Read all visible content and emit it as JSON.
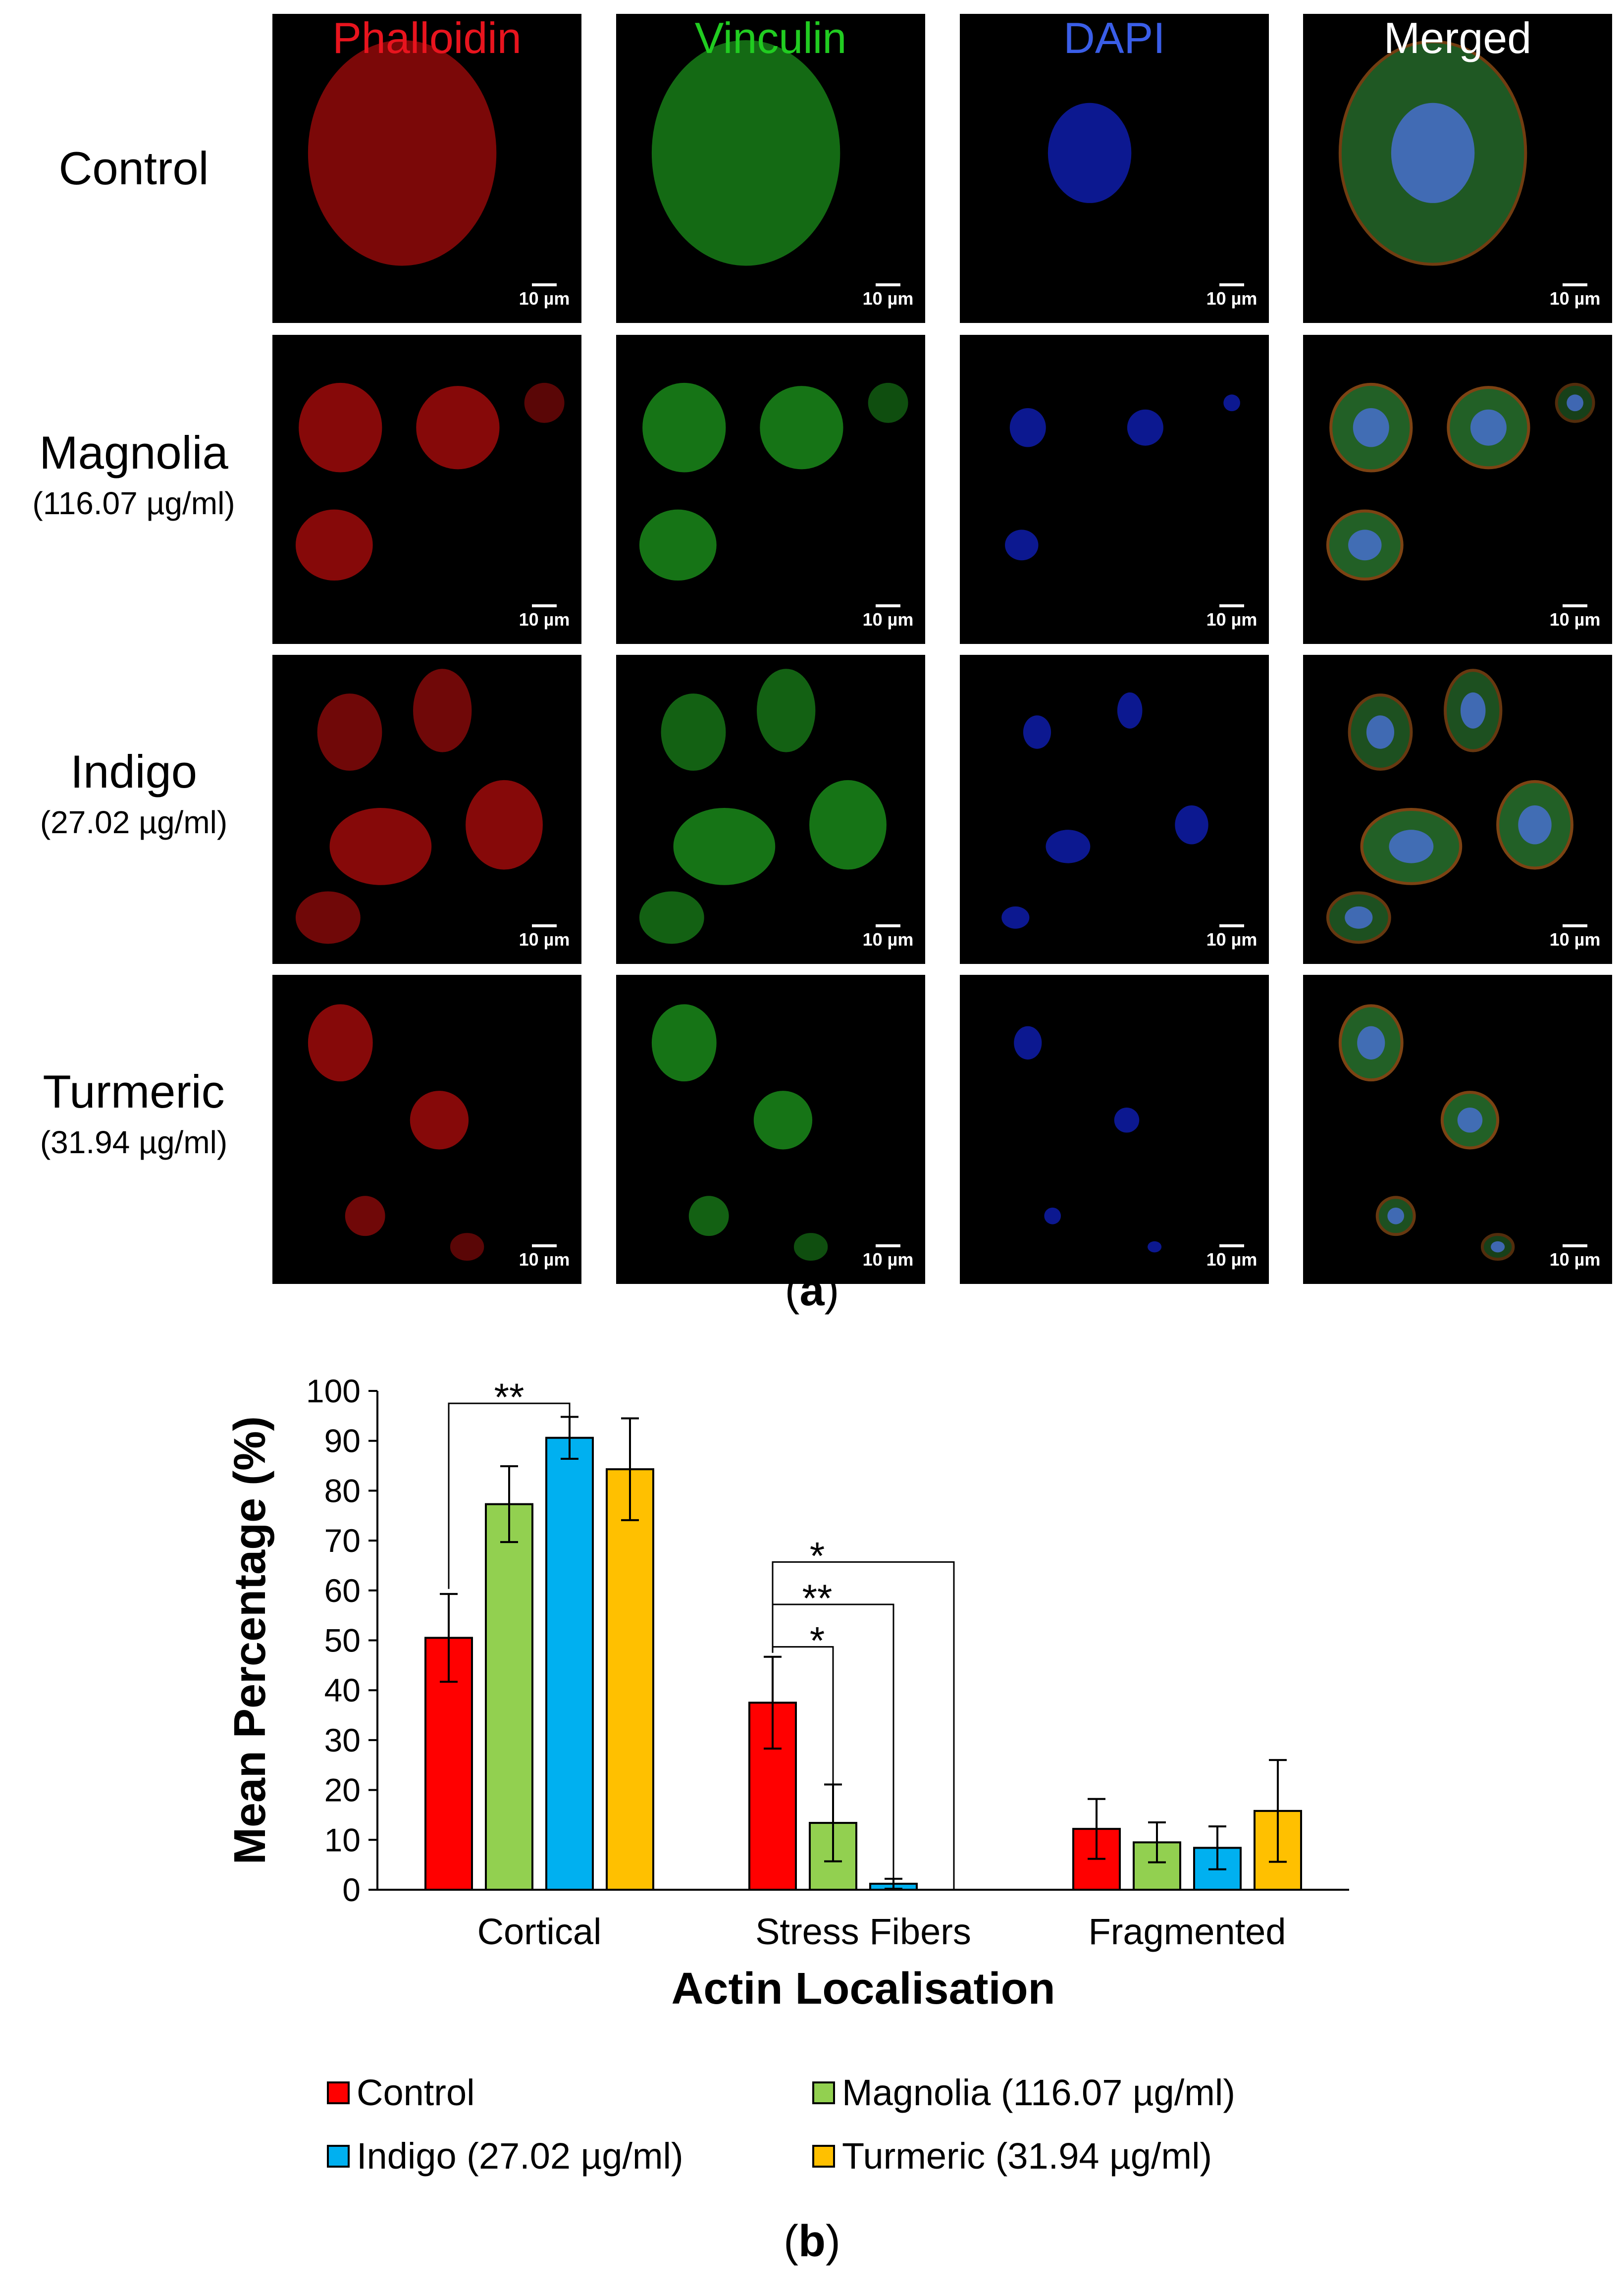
{
  "panel_a": {
    "columns": [
      {
        "label": "Phalloidin",
        "color": "#e8141e"
      },
      {
        "label": "Vinculin",
        "color": "#21cc21"
      },
      {
        "label": "DAPI",
        "color": "#3a5ee8"
      },
      {
        "label": "Merged",
        "color": "#ffffff"
      }
    ],
    "rows": [
      {
        "name": "Control",
        "conc": ""
      },
      {
        "name": "Magnolia",
        "conc": "(116.07 µg/ml)"
      },
      {
        "name": "Indigo",
        "conc": "(27.02 µg/ml)"
      },
      {
        "name": "Turmeric",
        "conc": "(31.94 µg/ml)"
      }
    ],
    "scale_bar": "10 µm",
    "letter": "a"
  },
  "panel_b": {
    "letter": "b"
  },
  "chart_data": {
    "type": "bar",
    "categories": [
      "Cortical",
      "Stress Fibers",
      "Fragmented"
    ],
    "series": [
      {
        "name": "Control",
        "color": "#ff0000",
        "values": [
          50.5,
          37.5,
          12.2
        ],
        "errors": [
          8.8,
          9.2,
          6.0
        ]
      },
      {
        "name": "Magnolia (116.07 µg/ml)",
        "color": "#92d050",
        "values": [
          77.3,
          13.4,
          9.5
        ],
        "errors": [
          7.6,
          7.7,
          4.0
        ]
      },
      {
        "name": "Indigo (27.02 µg/ml)",
        "color": "#00b0f0",
        "values": [
          90.6,
          1.2,
          8.4
        ],
        "errors": [
          4.2,
          1.0,
          4.3
        ]
      },
      {
        "name": "Turmeric (31.94 µg/ml)",
        "color": "#ffc000",
        "values": [
          84.3,
          0,
          15.8
        ],
        "errors": [
          10.2,
          0,
          10.2
        ]
      }
    ],
    "ylim": [
      0,
      100
    ],
    "yticks": [
      0,
      10,
      20,
      30,
      40,
      50,
      60,
      70,
      80,
      90,
      100
    ],
    "xlabel": "Actin Localisation",
    "ylabel": "Mean Percentage (%)",
    "grid": false,
    "legend_position": "bottom",
    "significance": [
      {
        "category": "Cortical",
        "from": 0,
        "to": 2,
        "label": "**"
      },
      {
        "category": "Stress Fibers",
        "from": 0,
        "to": 1,
        "label": "*"
      },
      {
        "category": "Stress Fibers",
        "from": 0,
        "to": 2,
        "label": "**"
      },
      {
        "category": "Stress Fibers",
        "from": 0,
        "to": 3,
        "label": "*"
      }
    ]
  }
}
